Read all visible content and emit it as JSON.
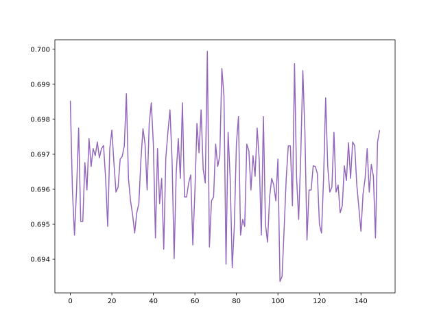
{
  "chart_data": {
    "type": "line",
    "title": "",
    "xlabel": "",
    "ylabel": "",
    "xlim": [
      -7.45,
      156.45
    ],
    "ylim": [
      0.69304,
      0.70027
    ],
    "grid": false,
    "xticks": [
      0,
      20,
      40,
      60,
      80,
      100,
      120,
      140
    ],
    "xtick_labels": [
      "0",
      "20",
      "40",
      "60",
      "80",
      "100",
      "120",
      "140"
    ],
    "yticks": [
      0.694,
      0.695,
      0.696,
      0.697,
      0.698,
      0.699,
      0.7
    ],
    "ytick_labels": [
      "0.694",
      "0.695",
      "0.696",
      "0.697",
      "0.698",
      "0.699",
      "0.700"
    ],
    "series": [
      {
        "color": "#9467bd",
        "values": [
          0.69853,
          0.69598,
          0.69469,
          0.69598,
          0.69775,
          0.69508,
          0.69508,
          0.69676,
          0.69598,
          0.69745,
          0.69665,
          0.69716,
          0.69696,
          0.69735,
          0.6969,
          0.69716,
          0.69725,
          0.69631,
          0.69494,
          0.69716,
          0.69769,
          0.69676,
          0.69592,
          0.69606,
          0.69686,
          0.69694,
          0.69724,
          0.69873,
          0.69631,
          0.69567,
          0.69527,
          0.69475,
          0.69533,
          0.69559,
          0.69684,
          0.69773,
          0.69729,
          0.69598,
          0.69788,
          0.69847,
          0.69729,
          0.69461,
          0.69716,
          0.69559,
          0.69631,
          0.69429,
          0.6969,
          0.69763,
          0.69827,
          0.69684,
          0.69402,
          0.69645,
          0.69745,
          0.69631,
          0.69847,
          0.69578,
          0.69578,
          0.69618,
          0.69641,
          0.69441,
          0.69592,
          0.69788,
          0.69704,
          0.69827,
          0.69657,
          0.69618,
          0.69994,
          0.69435,
          0.69567,
          0.69578,
          0.69729,
          0.69665,
          0.69696,
          0.69945,
          0.69867,
          0.69386,
          0.69763,
          0.69631,
          0.69376,
          0.69494,
          0.69729,
          0.69808,
          0.69469,
          0.69514,
          0.69494,
          0.69729,
          0.6971,
          0.69598,
          0.69696,
          0.69637,
          0.69775,
          0.69684,
          0.69469,
          0.69808,
          0.695,
          0.69449,
          0.69578,
          0.69631,
          0.69612,
          0.69567,
          0.69686,
          0.69337,
          0.69351,
          0.69488,
          0.69631,
          0.69724,
          0.69724,
          0.69553,
          0.69959,
          0.69631,
          0.69514,
          0.69696,
          0.69939,
          0.69763,
          0.69455,
          0.69598,
          0.69598,
          0.69667,
          0.69665,
          0.69645,
          0.695,
          0.69475,
          0.69631,
          0.69861,
          0.69665,
          0.69592,
          0.69606,
          0.69763,
          0.69592,
          0.69612,
          0.69533,
          0.69553,
          0.69667,
          0.69625,
          0.69733,
          0.69631,
          0.69735,
          0.69724,
          0.69612,
          0.69547,
          0.6948,
          0.69586,
          0.69631,
          0.69716,
          0.69592,
          0.69671,
          0.69637,
          0.69461,
          0.69735,
          0.69769
        ]
      }
    ]
  }
}
